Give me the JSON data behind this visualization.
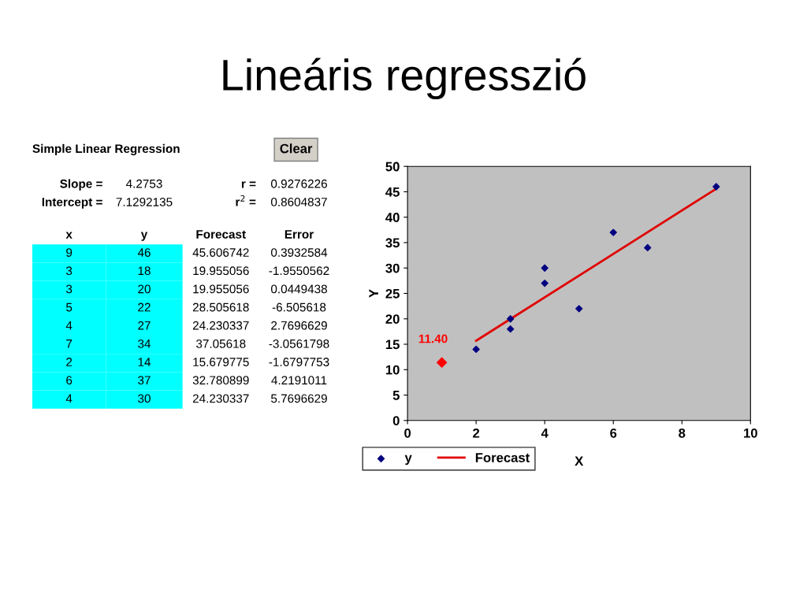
{
  "chart_data": [
    {
      "type": "other",
      "title": "Lineáris regresszió",
      "subtitle": "Simple Linear Regression",
      "annotations": [
        "Clear",
        "Slope =",
        "4.2753",
        "r =",
        "0.9276226",
        "Intercept =",
        "7.1292135",
        "r$^{2}$ =",
        "0.8604837",
        "x",
        "y",
        "Forecast",
        "Error",
        "9",
        "46",
        "45.606742",
        "0.3932584",
        "3",
        "18",
        "19.955056",
        "-1.9550562",
        "3",
        "20",
        "19.955056",
        "0.0449438",
        "5",
        "22",
        "28.505618",
        "-6.505618",
        "4",
        "27",
        "24.230337",
        "2.7696629",
        "7",
        "34",
        "37.05618",
        "-3.0561798",
        "2",
        "14",
        "15.679775",
        "-1.6797753",
        "6",
        "37",
        "32.780899",
        "4.2191011",
        "4",
        "30",
        "24.230337",
        "5.7696629"
      ]
    },
    {
      "type": "scatter",
      "xlabel": "X",
      "ylabel": "Y",
      "xlim": [
        0,
        10
      ],
      "ylim": [
        0,
        50
      ],
      "xticks": [
        0,
        2,
        4,
        6,
        8,
        10
      ],
      "yticks": [
        0,
        5,
        10,
        15,
        20,
        25,
        30,
        35,
        40,
        45,
        50
      ],
      "grid": false,
      "legend": "bottom",
      "series": [
        {
          "name": "y",
          "type": "scatter",
          "marker": "diamond",
          "color": "#000080",
          "x": [
            9,
            3,
            3,
            5,
            4,
            7,
            2,
            6,
            4
          ],
          "values": [
            46,
            18,
            20,
            22,
            27,
            34,
            14,
            37,
            30
          ]
        },
        {
          "name": "Forecast",
          "type": "line",
          "marker": "none",
          "color": "#e00000",
          "x": [
            2,
            9
          ],
          "values": [
            15.7,
            45.6
          ]
        },
        {
          "type": "scatter",
          "marker": "diamond",
          "color": "#ff0000",
          "x": [
            1
          ],
          "values": [
            11.4
          ]
        }
      ],
      "annotations": [
        {
          "text": "11.40",
          "x": 1,
          "y": 11.4
        }
      ]
    }
  ]
}
